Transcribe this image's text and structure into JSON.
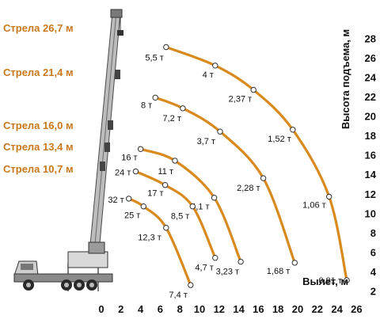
{
  "chart_data": {
    "type": "line",
    "xlabel": "Вылет, м",
    "ylabel": "Высота подъема, м",
    "x_ticks": [
      "0",
      "2",
      "4",
      "6",
      "8",
      "10",
      "12",
      "14",
      "16",
      "18",
      "20",
      "22",
      "24",
      "26"
    ],
    "y_ticks": [
      "2",
      "4",
      "6",
      "8",
      "10",
      "12",
      "14",
      "16",
      "18",
      "20",
      "22",
      "24",
      "26",
      "28"
    ],
    "xlim": [
      0,
      26
    ],
    "ylim": [
      2,
      28
    ],
    "colors": {
      "curve": "#d98a1f",
      "boom_label": "#c8781c",
      "point_fill": "#ffffff"
    },
    "series": [
      {
        "name": "Стрела 26,7 м",
        "points": [
          {
            "x": 6.6,
            "y": 27.1,
            "label": "5,5 т"
          },
          {
            "x": 11.6,
            "y": 25.2,
            "label": "4 т"
          },
          {
            "x": 15.5,
            "y": 22.7,
            "label": "2,37 т"
          },
          {
            "x": 19.5,
            "y": 18.6,
            "label": "1,52 т"
          },
          {
            "x": 23.2,
            "y": 11.7,
            "label": "1,06 т"
          },
          {
            "x": 25.0,
            "y": 3.1,
            "label": "0,91 т"
          }
        ]
      },
      {
        "name": "Стрела 21,4 м",
        "points": [
          {
            "x": 5.5,
            "y": 21.9,
            "label": "8 т"
          },
          {
            "x": 8.3,
            "y": 20.8,
            "label": "7,2 т"
          },
          {
            "x": 12.1,
            "y": 18.4,
            "label": "3,7 т"
          },
          {
            "x": 16.5,
            "y": 13.6,
            "label": "2,28 т"
          },
          {
            "x": 19.7,
            "y": 4.9,
            "label": "1,68 т"
          }
        ]
      },
      {
        "name": "Стрела 16,0 м",
        "points": [
          {
            "x": 4.0,
            "y": 16.6,
            "label": "16 т"
          },
          {
            "x": 7.5,
            "y": 15.4,
            "label": "11 т"
          },
          {
            "x": 11.5,
            "y": 11.6,
            "label": "4,1 т"
          },
          {
            "x": 14.2,
            "y": 5.0,
            "label": "3,23 т"
          }
        ]
      },
      {
        "name": "Стрела 13,4 м",
        "points": [
          {
            "x": 3.5,
            "y": 14.3,
            "label": "24 т"
          },
          {
            "x": 6.5,
            "y": 12.9,
            "label": "17 т"
          },
          {
            "x": 9.3,
            "y": 10.7,
            "label": "8,5 т"
          },
          {
            "x": 11.6,
            "y": 5.4,
            "label": "4,7 т"
          }
        ]
      },
      {
        "name": "Стрела 10,7 м",
        "points": [
          {
            "x": 2.8,
            "y": 11.5,
            "label": "32 т"
          },
          {
            "x": 4.3,
            "y": 10.7,
            "label": "25 т"
          },
          {
            "x": 6.6,
            "y": 8.5,
            "label": "12,3 т"
          },
          {
            "x": 9.1,
            "y": 2.6,
            "label": "7,4 т"
          }
        ]
      }
    ]
  }
}
